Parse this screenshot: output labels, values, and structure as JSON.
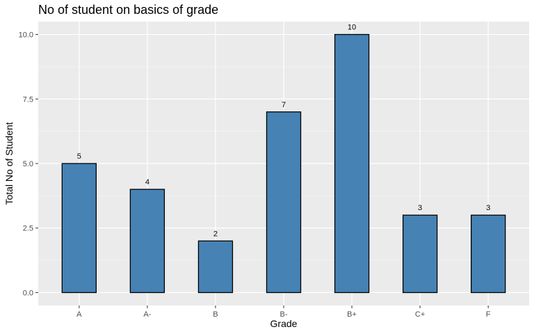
{
  "chart_data": {
    "type": "bar",
    "title": "No of student on basics of grade",
    "xlabel": "Grade",
    "ylabel": "Total No of Student",
    "categories": [
      "A",
      "A-",
      "B",
      "B-",
      "B+",
      "C+",
      "F"
    ],
    "values": [
      5,
      4,
      2,
      7,
      10,
      3,
      3
    ],
    "data_labels": [
      "5",
      "4",
      "2",
      "7",
      "10",
      "3",
      "3"
    ],
    "y_ticks": [
      0,
      2.5,
      5,
      7.5,
      10
    ],
    "y_tick_labels": [
      "0.0",
      "2.5",
      "5.0",
      "7.5",
      "10.0"
    ],
    "ylim": [
      -0.5,
      10.5
    ],
    "grid": true,
    "legend": "none",
    "colors": {
      "bar_fill": "#4682b4",
      "bar_outline": "#000000",
      "panel_background": "#ebebeb",
      "grid_major": "#ffffff",
      "grid_minor": "#f5f5f5"
    }
  }
}
